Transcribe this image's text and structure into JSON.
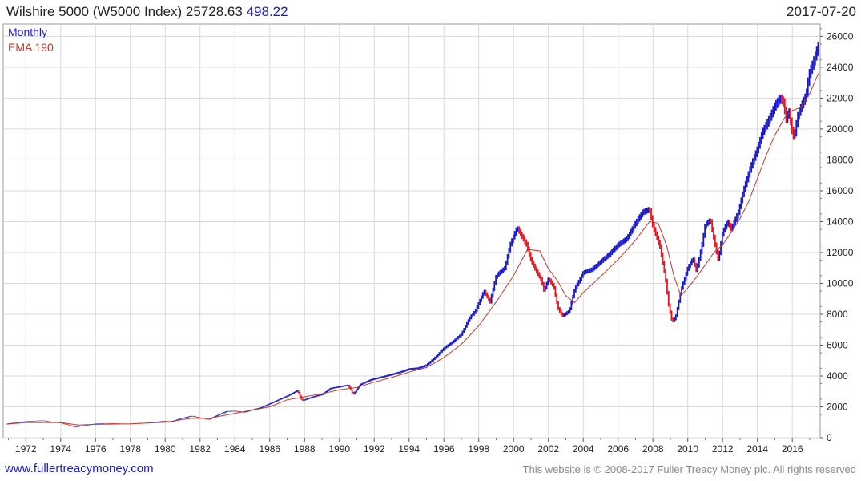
{
  "header": {
    "title": "Wilshire 5000 (W5000 Index) 25728.63",
    "change": "498.22",
    "date": "2017-07-20"
  },
  "footer": {
    "website": "www.fullertreacymoney.com",
    "copyright": "This website is © 2008-2017 Fuller Treacy Money plc. All rights reserved"
  },
  "colors": {
    "up": "#1a1acc",
    "down": "#e8141e",
    "ema": "#c0392b",
    "grid": "#d9d9d9"
  },
  "chart_data": {
    "type": "line",
    "title": "Wilshire 5000 (W5000 Index)",
    "legend": [
      "Monthly",
      "EMA 190"
    ],
    "legend_placement": "top-left",
    "y_axis_side": "right",
    "grid": true,
    "xlim": [
      1970.7,
      2017.6
    ],
    "ylim": [
      0,
      26800
    ],
    "x_ticks": [
      1972,
      1974,
      1976,
      1978,
      1980,
      1982,
      1984,
      1986,
      1988,
      1990,
      1992,
      1994,
      1996,
      1998,
      2000,
      2002,
      2004,
      2006,
      2008,
      2010,
      2012,
      2014,
      2016
    ],
    "y_ticks": [
      0,
      2000,
      4000,
      6000,
      8000,
      10000,
      12000,
      14000,
      16000,
      18000,
      20000,
      22000,
      24000,
      26000
    ],
    "series": [
      {
        "name": "Monthly",
        "x": [
          1970.9,
          1971.5,
          1972.0,
          1972.5,
          1973.0,
          1973.5,
          1974.0,
          1974.5,
          1974.8,
          1975.2,
          1975.6,
          1976.0,
          1976.5,
          1977.0,
          1977.5,
          1978.0,
          1978.5,
          1979.0,
          1979.5,
          1980.0,
          1980.3,
          1980.8,
          1981.5,
          1982.0,
          1982.5,
          1982.8,
          1983.5,
          1984.0,
          1984.5,
          1985.0,
          1985.5,
          1986.0,
          1986.5,
          1987.0,
          1987.6,
          1987.85,
          1988.5,
          1989.0,
          1989.5,
          1990.0,
          1990.5,
          1990.8,
          1991.2,
          1991.8,
          1992.5,
          1993.0,
          1993.5,
          1994.0,
          1994.5,
          1995.0,
          1995.5,
          1996.0,
          1996.5,
          1997.0,
          1997.5,
          1997.8,
          1998.3,
          1998.65,
          1999.0,
          1999.5,
          1999.8,
          2000.2,
          2000.5,
          2000.75,
          2001.0,
          2001.3,
          2001.6,
          2001.75,
          2002.0,
          2002.3,
          2002.55,
          2002.8,
          2003.2,
          2003.5,
          2004.0,
          2004.5,
          2005.0,
          2005.5,
          2006.0,
          2006.5,
          2007.0,
          2007.4,
          2007.8,
          2008.0,
          2008.4,
          2008.7,
          2008.9,
          2009.1,
          2009.3,
          2009.6,
          2010.0,
          2010.3,
          2010.5,
          2010.8,
          2011.0,
          2011.3,
          2011.6,
          2011.75,
          2012.0,
          2012.3,
          2012.5,
          2012.9,
          2013.2,
          2013.6,
          2014.0,
          2014.3,
          2014.7,
          2015.0,
          2015.3,
          2015.5,
          2015.65,
          2015.8,
          2016.0,
          2016.1,
          2016.3,
          2016.6,
          2016.8,
          2016.95,
          2017.2,
          2017.5
        ],
        "values": [
          900,
          980,
          1050,
          1080,
          1100,
          1000,
          950,
          800,
          680,
          760,
          820,
          900,
          930,
          920,
          900,
          880,
          940,
          960,
          1020,
          1080,
          1000,
          1220,
          1400,
          1280,
          1180,
          1350,
          1700,
          1720,
          1650,
          1800,
          1950,
          2200,
          2450,
          2700,
          3050,
          2400,
          2650,
          2800,
          3200,
          3300,
          3400,
          2800,
          3450,
          3750,
          3950,
          4100,
          4250,
          4450,
          4500,
          4700,
          5200,
          5800,
          6200,
          6700,
          7800,
          8200,
          9500,
          8800,
          10500,
          11000,
          12500,
          13600,
          13000,
          12500,
          11500,
          10800,
          10200,
          9500,
          10300,
          9800,
          8400,
          7900,
          8200,
          9600,
          10700,
          10900,
          11400,
          11900,
          12500,
          12900,
          13900,
          14600,
          14800,
          13700,
          12400,
          10500,
          8600,
          7500,
          7800,
          9500,
          11000,
          11600,
          10800,
          12400,
          13800,
          14100,
          12300,
          11500,
          13300,
          14000,
          13500,
          14600,
          16000,
          17500,
          18700,
          19800,
          20700,
          21500,
          22000,
          21700,
          20600,
          21200,
          19800,
          19400,
          20800,
          21700,
          22200,
          23500,
          24300,
          25400
        ]
      },
      {
        "name": "EMA 190",
        "x": [
          1970.9,
          1972.0,
          1974.0,
          1975.0,
          1976.0,
          1978.0,
          1980.0,
          1981.5,
          1982.5,
          1984.0,
          1986.0,
          1987.0,
          1988.0,
          1989.0,
          1990.0,
          1991.0,
          1992.0,
          1993.0,
          1994.0,
          1995.0,
          1996.0,
          1997.0,
          1998.0,
          1999.0,
          2000.0,
          2000.8,
          2001.5,
          2002.0,
          2002.5,
          2003.0,
          2003.5,
          2004.0,
          2005.0,
          2006.0,
          2007.0,
          2007.8,
          2008.3,
          2008.8,
          2009.2,
          2009.6,
          2010.0,
          2010.5,
          2011.0,
          2011.5,
          2012.0,
          2012.5,
          2013.0,
          2013.5,
          2014.0,
          2014.5,
          2015.0,
          2015.6,
          2016.0,
          2016.5,
          2017.0,
          2017.5
        ],
        "values": [
          880,
          980,
          980,
          820,
          860,
          900,
          1000,
          1260,
          1250,
          1580,
          2000,
          2450,
          2650,
          2850,
          3100,
          3250,
          3600,
          3900,
          4250,
          4550,
          5200,
          6050,
          7250,
          8800,
          10500,
          12200,
          12100,
          10950,
          10200,
          9200,
          8750,
          9400,
          10450,
          11550,
          12800,
          14000,
          13900,
          12400,
          10500,
          9200,
          9700,
          10400,
          11200,
          12000,
          12500,
          13300,
          14200,
          15300,
          16800,
          18300,
          19600,
          20800,
          21200,
          21400,
          22300,
          23600
        ]
      }
    ]
  }
}
